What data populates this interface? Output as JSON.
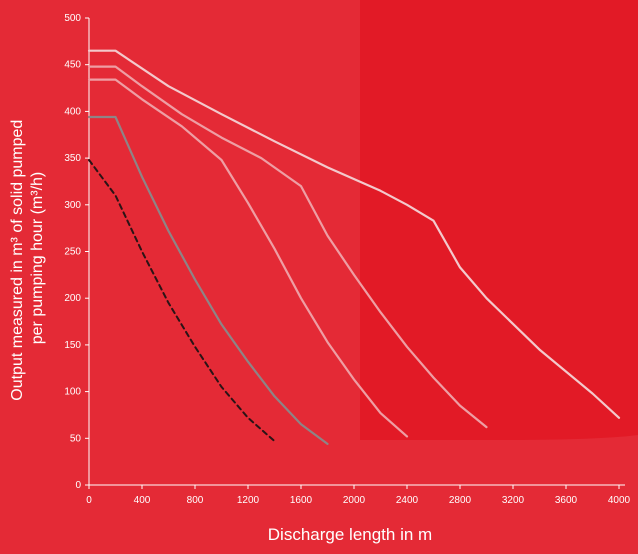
{
  "chart_data": {
    "type": "line",
    "xlabel": "Discharge  length in m",
    "ylabel": "Output measured in m³ of solid pumped per pumping hour (m³/h)",
    "ylabel_line1": "Output measured in m³ of solid pumped",
    "ylabel_line2": "per pumping hour (m³/h)",
    "xlim": [
      0,
      4000
    ],
    "ylim": [
      0,
      500
    ],
    "x_ticks": [
      0,
      400,
      800,
      1200,
      1600,
      2000,
      2400,
      2800,
      3200,
      3600,
      4000
    ],
    "y_ticks": [
      0,
      50,
      100,
      150,
      200,
      250,
      300,
      350,
      400,
      450,
      500
    ],
    "grid": false,
    "colors": {
      "background": "#e42a36",
      "highlight_region": "#e21a26",
      "axis": "#ffffff",
      "light_series": "#f3c9cc",
      "mid_series": "#ee9ea4",
      "grey_series": "#8e8486",
      "dashed_series": "#2a1416"
    },
    "series": [
      {
        "style": "solid-light",
        "x": [
          0,
          200,
          600,
          1000,
          1400,
          1800,
          2200,
          2400,
          2600,
          2800,
          3000,
          3400,
          3800,
          4000
        ],
        "y": [
          465,
          465,
          427,
          397,
          368,
          340,
          315,
          300,
          283,
          233,
          200,
          145,
          98,
          72
        ]
      },
      {
        "style": "solid-mid",
        "x": [
          0,
          200,
          400,
          700,
          1000,
          1300,
          1600,
          1800,
          2000,
          2200,
          2400,
          2600,
          2800,
          3000
        ],
        "y": [
          448,
          448,
          427,
          397,
          372,
          350,
          320,
          267,
          225,
          185,
          148,
          115,
          85,
          62
        ]
      },
      {
        "style": "solid-mid",
        "x": [
          0,
          200,
          400,
          700,
          1000,
          1200,
          1400,
          1600,
          1800,
          2000,
          2200,
          2400
        ],
        "y": [
          434,
          434,
          413,
          384,
          348,
          302,
          253,
          200,
          153,
          113,
          77,
          52
        ]
      },
      {
        "style": "grey",
        "x": [
          0,
          200,
          400,
          600,
          800,
          1000,
          1200,
          1400,
          1600,
          1800
        ],
        "y": [
          394,
          394,
          330,
          272,
          220,
          172,
          132,
          95,
          65,
          44
        ]
      },
      {
        "style": "dashed",
        "x": [
          0,
          200,
          400,
          600,
          800,
          1000,
          1200,
          1400
        ],
        "y": [
          348,
          310,
          250,
          195,
          148,
          105,
          72,
          47
        ]
      }
    ]
  }
}
